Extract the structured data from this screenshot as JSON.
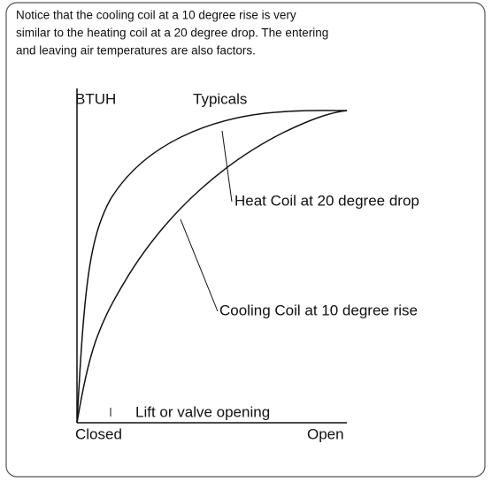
{
  "note": [
    "Notice that the cooling coil at a 10 degree rise is very",
    "similar to the heating coil at a 20 degree drop. The entering",
    "and leaving air temperatures are also factors."
  ],
  "diagram": {
    "y_axis_label": "BTUH",
    "title": "Typicals",
    "curves": [
      {
        "label": "Heat Coil at 20 degree drop"
      },
      {
        "label": "Cooling Coil at 10 degree rise"
      }
    ],
    "x_axis_label": "Lift or valve opening",
    "x_start": "Closed",
    "x_end": "Open"
  }
}
